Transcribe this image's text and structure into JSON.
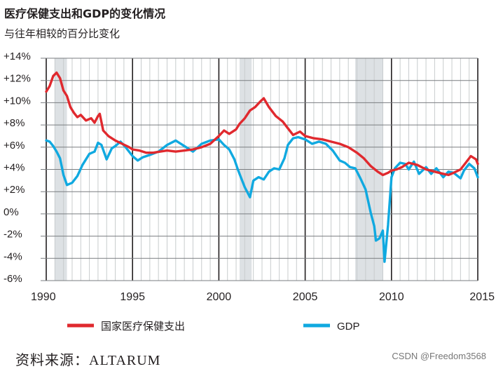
{
  "title": "医疗保健支出和GDP的变化情况",
  "subtitle": "与往年相较的百分比变化",
  "source": "资料来源：ALTARUM",
  "watermark": "CSDN @Freedom3568",
  "colors": {
    "health": "#e0292e",
    "gdp": "#10a9e0",
    "recession": "#dde1e4",
    "grid": "#c8ccce",
    "axis": "#231f20"
  },
  "chart_data": {
    "type": "line",
    "xlim": [
      1990,
      2015
    ],
    "ylim": [
      -6,
      14
    ],
    "x_ticks": [
      1990,
      1995,
      2000,
      2005,
      2010,
      2015
    ],
    "x_tick_labels": [
      "1990",
      "1995",
      "2000",
      "2005",
      "2010",
      "2015"
    ],
    "y_ticks": [
      14,
      12,
      10,
      8,
      6,
      4,
      2,
      0,
      -2,
      -4,
      -6
    ],
    "y_tick_labels": [
      "+14%",
      "+12%",
      "+10%",
      "+8%",
      "+6%",
      "+4%",
      "+2%",
      "0%",
      "-2%",
      "-4%",
      "-6%"
    ],
    "recessions": [
      [
        1990.5,
        1991.2
      ],
      [
        2001.2,
        2001.9
      ],
      [
        2007.9,
        2009.5
      ]
    ],
    "grid": true,
    "legend_position": "bottom",
    "series": [
      {
        "name": "国家医疗保健支出",
        "x": [
          1990.0,
          1990.2,
          1990.4,
          1990.6,
          1990.8,
          1991.0,
          1991.2,
          1991.4,
          1991.6,
          1991.8,
          1992.0,
          1992.3,
          1992.6,
          1992.8,
          1993.0,
          1993.1,
          1993.3,
          1993.6,
          1994.0,
          1994.4,
          1994.8,
          1995.0,
          1995.4,
          1995.8,
          1996.2,
          1996.6,
          1997.0,
          1997.5,
          1998.0,
          1998.5,
          1999.0,
          1999.5,
          2000.0,
          2000.3,
          2000.6,
          2001.0,
          2001.2,
          2001.5,
          2001.8,
          2002.1,
          2002.4,
          2002.6,
          2002.9,
          2003.3,
          2003.7,
          2004.0,
          2004.3,
          2004.7,
          2005.0,
          2005.5,
          2006.0,
          2006.5,
          2007.0,
          2007.5,
          2008.0,
          2008.4,
          2008.8,
          2009.2,
          2009.5,
          2009.8,
          2010.0,
          2010.3,
          2010.6,
          2011.0,
          2011.5,
          2012.0,
          2012.5,
          2013.0,
          2013.3,
          2013.6,
          2014.0,
          2014.3,
          2014.6,
          2014.9,
          2015.0
        ],
        "y": [
          11.0,
          11.5,
          12.4,
          12.7,
          12.2,
          11.1,
          10.6,
          9.6,
          9.1,
          8.7,
          8.9,
          8.4,
          8.6,
          8.2,
          8.8,
          9.0,
          7.5,
          7.0,
          6.6,
          6.3,
          6.0,
          5.8,
          5.7,
          5.5,
          5.5,
          5.6,
          5.7,
          5.6,
          5.7,
          5.8,
          6.0,
          6.3,
          7.0,
          7.5,
          7.2,
          7.6,
          8.1,
          8.6,
          9.3,
          9.6,
          10.1,
          10.4,
          9.6,
          8.8,
          8.3,
          7.7,
          7.1,
          7.4,
          7.0,
          6.8,
          6.7,
          6.5,
          6.3,
          6.0,
          5.5,
          5.0,
          4.3,
          3.8,
          3.5,
          3.7,
          3.9,
          4.0,
          4.2,
          4.6,
          4.4,
          4.0,
          3.8,
          3.6,
          3.5,
          3.7,
          4.0,
          4.6,
          5.2,
          4.9,
          4.5
        ]
      },
      {
        "name": "GDP",
        "x": [
          1990.0,
          1990.2,
          1990.4,
          1990.6,
          1990.8,
          1991.0,
          1991.2,
          1991.5,
          1991.8,
          1992.1,
          1992.5,
          1992.8,
          1993.0,
          1993.2,
          1993.5,
          1993.8,
          1994.0,
          1994.3,
          1994.6,
          1995.0,
          1995.3,
          1995.6,
          1996.0,
          1996.5,
          1997.0,
          1997.5,
          1998.0,
          1998.5,
          1999.0,
          1999.5,
          2000.0,
          2000.3,
          2000.6,
          2000.9,
          2001.1,
          2001.3,
          2001.5,
          2001.8,
          2002.0,
          2002.3,
          2002.6,
          2002.9,
          2003.2,
          2003.5,
          2003.8,
          2004.0,
          2004.3,
          2004.6,
          2005.0,
          2005.4,
          2005.8,
          2006.2,
          2006.6,
          2007.0,
          2007.3,
          2007.6,
          2007.9,
          2008.2,
          2008.5,
          2008.8,
          2009.0,
          2009.1,
          2009.3,
          2009.5,
          2009.6,
          2009.8,
          2010.0,
          2010.2,
          2010.5,
          2010.8,
          2011.0,
          2011.3,
          2011.6,
          2012.0,
          2012.3,
          2012.6,
          2013.0,
          2013.3,
          2013.6,
          2014.0,
          2014.2,
          2014.5,
          2014.8,
          2015.0
        ],
        "y": [
          6.6,
          6.5,
          6.1,
          5.6,
          5.0,
          3.5,
          2.6,
          2.8,
          3.4,
          4.4,
          5.4,
          5.6,
          6.4,
          6.2,
          4.9,
          5.9,
          6.1,
          6.5,
          6.0,
          5.2,
          4.8,
          5.1,
          5.3,
          5.6,
          6.2,
          6.6,
          6.1,
          5.6,
          6.3,
          6.6,
          6.7,
          6.2,
          5.8,
          4.9,
          4.0,
          3.2,
          2.4,
          1.5,
          3.0,
          3.3,
          3.1,
          3.8,
          4.1,
          4.0,
          5.0,
          6.2,
          6.8,
          6.9,
          6.7,
          6.3,
          6.5,
          6.3,
          5.7,
          4.8,
          4.6,
          4.2,
          4.1,
          3.2,
          2.2,
          0.1,
          -1.1,
          -2.4,
          -2.2,
          -1.5,
          -4.3,
          -1.0,
          3.3,
          4.1,
          4.6,
          4.5,
          4.0,
          4.7,
          3.6,
          4.2,
          3.6,
          4.1,
          3.3,
          3.8,
          3.7,
          3.2,
          3.9,
          4.5,
          4.1,
          3.3
        ]
      }
    ]
  }
}
